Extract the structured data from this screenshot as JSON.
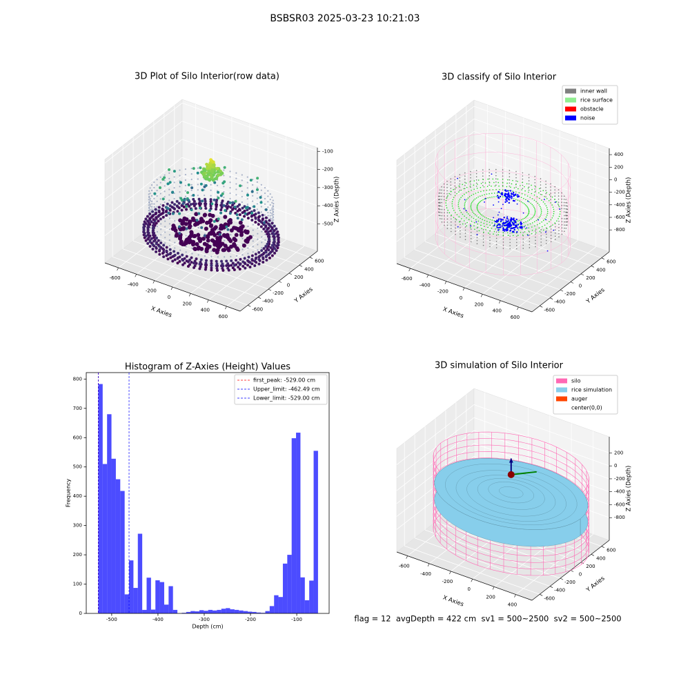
{
  "title": "BSBSR03 2025-03-23 10:21:03",
  "footer": "flag = 12  avgDepth = 422 cm  sv1 = 500~2500  sv2 = 500~2500",
  "chart_data": [
    {
      "type": "scatter3d",
      "title": "3D Plot of Silo Interior(row data)",
      "xlabel": "X Axies",
      "ylabel": "Y Axies",
      "zlabel": "Z Axies (Depth)",
      "xlim": [
        -750,
        750
      ],
      "ylim": [
        -750,
        750
      ],
      "zlim": [
        -650,
        -80
      ],
      "xticks": [
        -600,
        -400,
        -200,
        0,
        200,
        400,
        600
      ],
      "yticks": [
        -600,
        -400,
        -200,
        0,
        200,
        400,
        600
      ],
      "zticks": [
        -500,
        -400,
        -300,
        -200,
        -100
      ]
    },
    {
      "type": "scatter3d",
      "title": "3D classify of Silo Interior",
      "xlabel": "X Axies",
      "ylabel": "Y Axies",
      "zlabel": "Z Axies (Depth)",
      "xlim": [
        -750,
        750
      ],
      "ylim": [
        -750,
        750
      ],
      "zlim": [
        -1150,
        500
      ],
      "xticks": [
        -600,
        -400,
        -200,
        0,
        200,
        400,
        600
      ],
      "yticks": [
        -600,
        -400,
        -200,
        0,
        200,
        400,
        600
      ],
      "zticks": [
        -800,
        -600,
        -400,
        -200,
        0,
        200,
        400
      ],
      "legend": [
        {
          "name": "inner wall",
          "color": "#808080"
        },
        {
          "name": "rice surface",
          "color": "#90ee90"
        },
        {
          "name": "obstacle",
          "color": "#ff0000"
        },
        {
          "name": "noise",
          "color": "#0000ff"
        }
      ]
    },
    {
      "type": "histogram",
      "title": "Histogram of Z-Axies (Height) Values",
      "xlabel": "Depth (cm)",
      "ylabel": "Frequency",
      "color": "#0000ff",
      "alpha": 0.7,
      "xlim": [
        -555,
        -30
      ],
      "ylim": [
        0,
        822
      ],
      "xticks": [
        -500,
        -400,
        -300,
        -200,
        -100
      ],
      "yticks": [
        0,
        100,
        200,
        300,
        400,
        500,
        600,
        700,
        800
      ],
      "bins": [
        -529,
        -519.5,
        -510,
        -500.5,
        -491,
        -481.5,
        -472,
        -462.5,
        -453,
        -443.5,
        -434,
        -424.5,
        -415,
        -405.5,
        -396,
        -386.5,
        -377,
        -367.5,
        -358,
        -348.5,
        -339,
        -329.5,
        -320,
        -310.5,
        -301,
        -291.5,
        -282,
        -272.5,
        -263,
        -253.5,
        -244,
        -234.5,
        -225,
        -215.5,
        -206,
        -196.5,
        -187,
        -177.5,
        -168,
        -158.5,
        -149,
        -139.5,
        -130,
        -120.5,
        -111,
        -101.5,
        -92,
        -82.5,
        -73,
        -63.5,
        -54
      ],
      "values": [
        783,
        510,
        680,
        528,
        458,
        418,
        65,
        181,
        87,
        272,
        12,
        122,
        13,
        113,
        107,
        30,
        93,
        12,
        0,
        2,
        5,
        8,
        7,
        11,
        9,
        12,
        10,
        12,
        16,
        18,
        14,
        12,
        10,
        8,
        6,
        5,
        3,
        2,
        8,
        25,
        62,
        56,
        170,
        200,
        598,
        617,
        123,
        45,
        112,
        555
      ],
      "lines": [
        {
          "label": "first_peak: -529.00 cm",
          "value": -529,
          "color": "#ff0000"
        },
        {
          "label": "Upper_limit: -462.49 cm",
          "value": -462.49,
          "color": "#0000ff"
        },
        {
          "label": "Lower_limit: -529.00 cm",
          "value": -529,
          "color": "#0000ff"
        }
      ]
    },
    {
      "type": "surface3d",
      "title": "3D simulation of Silo Interior",
      "xlabel": "X Axies",
      "ylabel": "Y Axies",
      "zlabel": "Z Axies (Depth)",
      "xlim": [
        -700,
        550
      ],
      "ylim": [
        -750,
        750
      ],
      "zlim": [
        -1150,
        450
      ],
      "xticks": [
        -600,
        -400,
        -200,
        0,
        200,
        400
      ],
      "yticks": [
        -600,
        -400,
        -200,
        0,
        200,
        400,
        600
      ],
      "zticks": [
        -800,
        -600,
        -400,
        -200,
        0,
        200
      ],
      "legend": [
        {
          "name": "silo",
          "color": "#ff69b4"
        },
        {
          "name": "rice simulation",
          "color": "#87ceeb"
        },
        {
          "name": "auger",
          "color": "#ff4500"
        },
        {
          "name": "center(0,0)"
        }
      ]
    }
  ]
}
